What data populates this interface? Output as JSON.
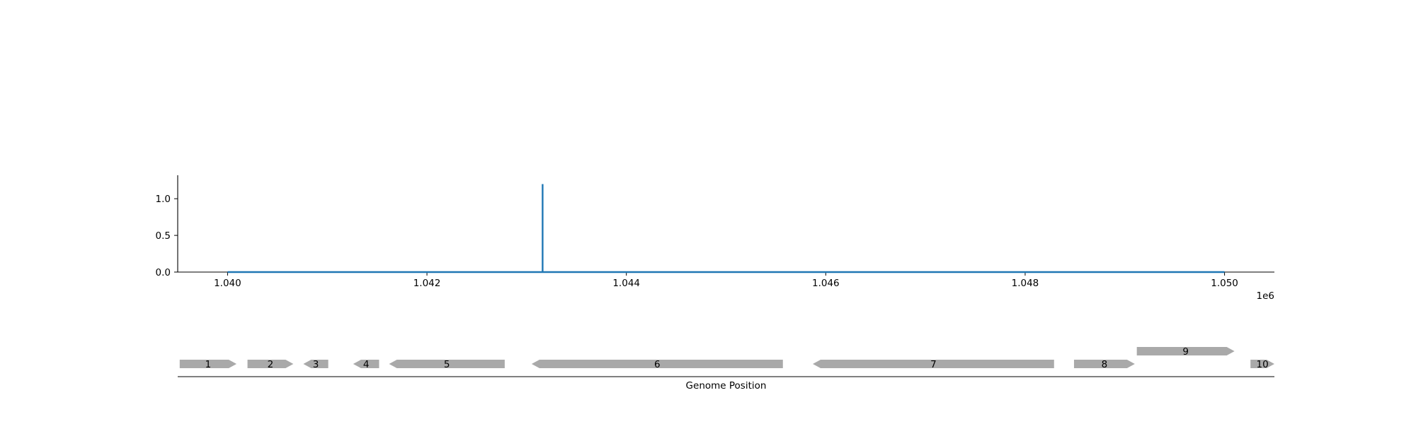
{
  "chart_data": [
    {
      "type": "line",
      "title": "",
      "xlabel": "",
      "ylabel": "",
      "x_offset_label": "1e6",
      "xlim": [
        1.0395,
        1.0505
      ],
      "ylim": [
        0.0,
        1.32
      ],
      "x_ticks": [
        1.04,
        1.042,
        1.044,
        1.046,
        1.048,
        1.05
      ],
      "x_tick_labels": [
        "1.040",
        "1.042",
        "1.044",
        "1.046",
        "1.048",
        "1.050"
      ],
      "y_ticks": [
        0.0,
        0.5,
        1.0
      ],
      "y_tick_labels": [
        "0.0",
        "0.5",
        "1.0"
      ],
      "grid": false,
      "series": [
        {
          "color": "#1f77b4",
          "x": [
            1.04,
            1.04316,
            1.04316,
            1.04316,
            1.05
          ],
          "y": [
            0.0,
            0.0,
            1.2,
            0.0,
            0.0
          ]
        }
      ]
    },
    {
      "type": "gene-track",
      "xlabel": "Genome Position",
      "genes": [
        {
          "label": "1",
          "start": 1.03952,
          "end": 1.04009,
          "strand": "+",
          "row": 0
        },
        {
          "label": "2",
          "start": 1.0402,
          "end": 1.04066,
          "strand": "+",
          "row": 0
        },
        {
          "label": "3",
          "start": 1.04076,
          "end": 1.04101,
          "strand": "-",
          "row": 0
        },
        {
          "label": "4",
          "start": 1.04126,
          "end": 1.04152,
          "strand": "-",
          "row": 0
        },
        {
          "label": "5",
          "start": 1.04162,
          "end": 1.04278,
          "strand": "-",
          "row": 0
        },
        {
          "label": "6",
          "start": 1.04305,
          "end": 1.04557,
          "strand": "-",
          "row": 0
        },
        {
          "label": "7",
          "start": 1.04587,
          "end": 1.04829,
          "strand": "-",
          "row": 0
        },
        {
          "label": "8",
          "start": 1.04849,
          "end": 1.0491,
          "strand": "+",
          "row": 0
        },
        {
          "label": "9",
          "start": 1.04912,
          "end": 1.0501,
          "strand": "+",
          "row": 1
        },
        {
          "label": "10",
          "start": 1.05026,
          "end": 1.0505,
          "strand": "+",
          "row": 0
        }
      ],
      "gene_color": "#a9a9a9"
    }
  ]
}
